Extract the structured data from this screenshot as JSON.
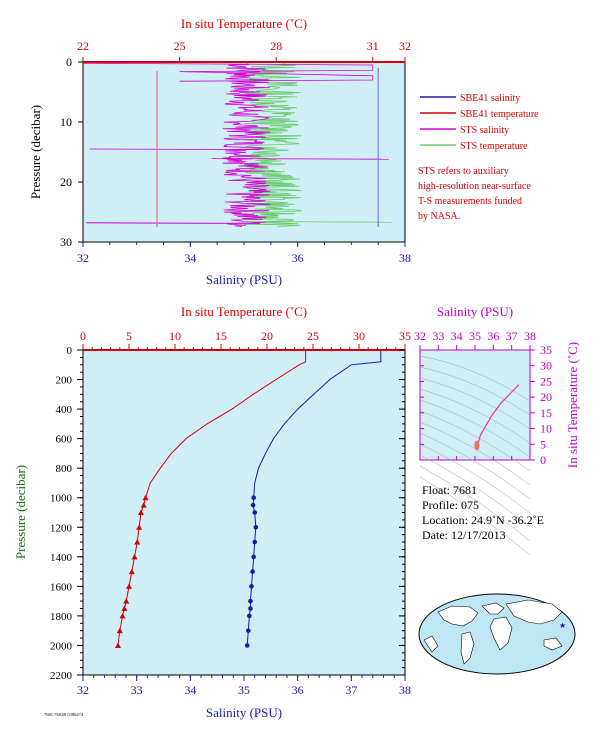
{
  "chart_data": [
    {
      "type": "line",
      "panel": "top-profile",
      "top_axis": {
        "label": "In situ Temperature (˚C)",
        "ticks": [
          "22",
          "25",
          "28",
          "31",
          "32"
        ],
        "range": [
          22,
          32
        ]
      },
      "bottom_axis": {
        "label": "Salinity (PSU)",
        "ticks": [
          "32",
          "34",
          "36",
          "38"
        ],
        "range": [
          32,
          38
        ]
      },
      "y_axis": {
        "label": "Pressure (decibar)",
        "ticks": [
          "0",
          "10",
          "20",
          "30"
        ],
        "range": [
          0,
          30
        ],
        "inverted": true
      },
      "legend": {
        "placement": "right",
        "items": [
          {
            "name": "SBE41 salinity",
            "color": "#1a1aa8"
          },
          {
            "name": "SBE41 temperature",
            "color": "#d40000"
          },
          {
            "name": "STS salinity",
            "color": "#d400d4"
          },
          {
            "name": "STS temperature",
            "color": "#66cc66"
          }
        ]
      },
      "note": [
        "STS refers to auxiliary",
        "high-resolution near-surface",
        "T-S measurements funded",
        "by NASA."
      ],
      "series": [
        {
          "name": "SBE41 salinity",
          "x": [
            37.5,
            37.5,
            37.5,
            37.5
          ],
          "y": [
            1,
            10,
            20,
            27.5
          ]
        },
        {
          "name": "SBE41 temperature",
          "x": [
            24.3,
            24.3,
            24.3,
            24.3
          ],
          "y": [
            1.5,
            10,
            20,
            27.5
          ]
        }
      ]
    },
    {
      "type": "line",
      "panel": "main-profile",
      "top_axis": {
        "label": "In situ Temperature (˚C)",
        "ticks": [
          "0",
          "5",
          "10",
          "15",
          "20",
          "25",
          "30",
          "35"
        ],
        "range": [
          0,
          35
        ]
      },
      "bottom_axis": {
        "label": "Salinity (PSU)",
        "ticks": [
          "32",
          "33",
          "34",
          "35",
          "36",
          "37",
          "38"
        ],
        "range": [
          32,
          38
        ]
      },
      "y_axis": {
        "label": "Pressure (decibar)",
        "ticks": [
          "0",
          "200",
          "400",
          "600",
          "800",
          "1000",
          "1200",
          "1400",
          "1600",
          "1800",
          "2000",
          "2200"
        ],
        "range": [
          0,
          2200
        ],
        "inverted": true
      },
      "series": [
        {
          "name": "temperature",
          "color": "#d40000",
          "x": [
            24.2,
            24.2,
            23.5,
            21,
            18.5,
            16.2,
            13.5,
            11.2,
            9.6,
            8.4,
            7.3,
            6.8,
            6.6,
            6.3,
            6.1,
            5.9,
            5.6,
            5.3,
            5.0,
            4.7,
            4.5,
            4.3,
            4.0,
            3.8
          ],
          "y": [
            0,
            80,
            100,
            200,
            300,
            400,
            500,
            600,
            700,
            800,
            900,
            1000,
            1050,
            1100,
            1200,
            1300,
            1400,
            1500,
            1600,
            1700,
            1750,
            1800,
            1900,
            2000
          ]
        },
        {
          "name": "salinity",
          "color": "#1a1aa8",
          "x": [
            37.55,
            37.55,
            37.0,
            36.6,
            36.3,
            36.0,
            35.75,
            35.55,
            35.4,
            35.27,
            35.2,
            35.18,
            35.17,
            35.2,
            35.22,
            35.2,
            35.18,
            35.16,
            35.14,
            35.12,
            35.12,
            35.1,
            35.08,
            35.06
          ],
          "y": [
            0,
            80,
            100,
            200,
            300,
            400,
            500,
            600,
            700,
            800,
            900,
            1000,
            1050,
            1100,
            1200,
            1300,
            1400,
            1500,
            1600,
            1700,
            1750,
            1800,
            1900,
            2000
          ]
        }
      ]
    },
    {
      "type": "scatter",
      "panel": "ts-diagram",
      "top_axis": {
        "label": "Salinity (PSU)",
        "ticks": [
          "32",
          "33",
          "34",
          "35",
          "36",
          "37",
          "38"
        ],
        "range": [
          32,
          38
        ]
      },
      "y_axis": {
        "label": "In situ Temperature (˚C)",
        "ticks": [
          "0",
          "5",
          "10",
          "15",
          "20",
          "25",
          "30",
          "35"
        ],
        "range": [
          0,
          35
        ]
      },
      "series": [
        {
          "name": "T-S",
          "color": "#e0408a",
          "x": [
            37.4,
            36.9,
            36.4,
            35.9,
            35.6,
            35.3,
            35.2,
            35.1,
            35.1
          ],
          "y": [
            24,
            21,
            18,
            14,
            11,
            8,
            6,
            5,
            4
          ]
        }
      ]
    }
  ],
  "float_info": {
    "float": "Float:  7681",
    "profile": "Profile:  075",
    "location": "Location:  24.9˚N  -36.2˚E",
    "date": "Date:  12/17/2013"
  },
  "footer_code": "7681/7682B 0386474",
  "colors": {
    "panel_bg": "#cfeef6",
    "temperature": "#d40000",
    "salinity": "#1a1aa8",
    "sts_salinity": "#d400d4",
    "sts_temperature": "#66cc66",
    "magenta_axis": "#c000c0",
    "y_label": "#1a6a1a"
  },
  "map": {
    "icon": "world-map-icon",
    "marker": "star"
  }
}
